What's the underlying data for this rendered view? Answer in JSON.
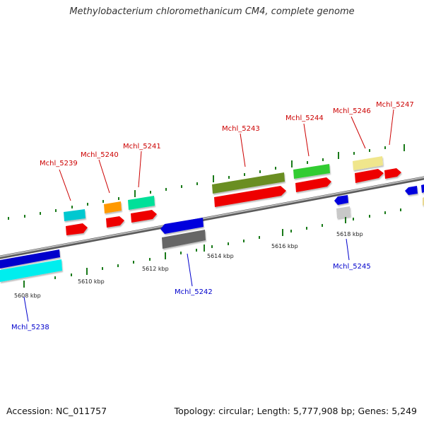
{
  "title": "Methylobacterium chloromethanicum CM4, complete genome",
  "footer": {
    "accession": "Accession: NC_011757",
    "info": "Topology: circular; Length: 5,777,908 bp; Genes: 5,249"
  },
  "colors": {
    "label_forward": "#cc0000",
    "label_reverse": "#0000cc",
    "tick": "#1a7a1a",
    "backbone": "#888888"
  },
  "scale_labels": [
    "5608 kbp",
    "5610 kbp",
    "5612 kbp",
    "5614 kbp",
    "5616 kbp",
    "5618 kbp"
  ],
  "genes": [
    {
      "name": "Mchl_5238",
      "strand": "reverse"
    },
    {
      "name": "Mchl_5239",
      "strand": "forward"
    },
    {
      "name": "Mchl_5240",
      "strand": "forward"
    },
    {
      "name": "Mchl_5241",
      "strand": "forward"
    },
    {
      "name": "Mchl_5242",
      "strand": "reverse"
    },
    {
      "name": "Mchl_5243",
      "strand": "forward"
    },
    {
      "name": "Mchl_5244",
      "strand": "forward"
    },
    {
      "name": "Mchl_5245",
      "strand": "reverse"
    },
    {
      "name": "Mchl_5246",
      "strand": "forward"
    },
    {
      "name": "Mchl_5247",
      "strand": "forward"
    }
  ]
}
